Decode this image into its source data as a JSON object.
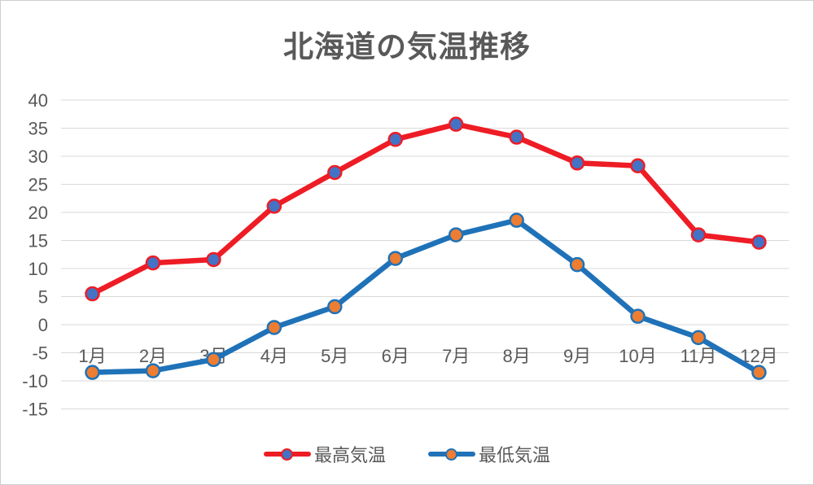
{
  "chart_data": {
    "type": "line",
    "title": "北海道の気温推移",
    "categories": [
      "1月",
      "2月",
      "3月",
      "4月",
      "5月",
      "6月",
      "7月",
      "8月",
      "9月",
      "10月",
      "11月",
      "12月"
    ],
    "series": [
      {
        "name": "最高気温",
        "line_color": "#ee1c25",
        "marker_fill": "#4472c4",
        "values": [
          5.5,
          11.0,
          11.6,
          21.1,
          27.1,
          33.0,
          35.7,
          33.4,
          28.8,
          28.3,
          16.0,
          14.7
        ]
      },
      {
        "name": "最低気温",
        "line_color": "#1f72b8",
        "marker_fill": "#ed7d31",
        "values": [
          -8.5,
          -8.2,
          -6.2,
          -0.5,
          3.2,
          11.8,
          16.0,
          18.6,
          10.7,
          1.5,
          -2.3,
          -8.5
        ]
      }
    ],
    "ylim": [
      -15,
      40
    ],
    "ytick_step": 5,
    "yticks": [
      40,
      35,
      30,
      25,
      20,
      15,
      10,
      5,
      0,
      -5,
      -10,
      -15
    ],
    "xlabel": "",
    "ylabel": "",
    "grid": "horizontal",
    "legend_position": "bottom",
    "gridline_color": "#d9d9d9",
    "text_color": "#595959"
  }
}
